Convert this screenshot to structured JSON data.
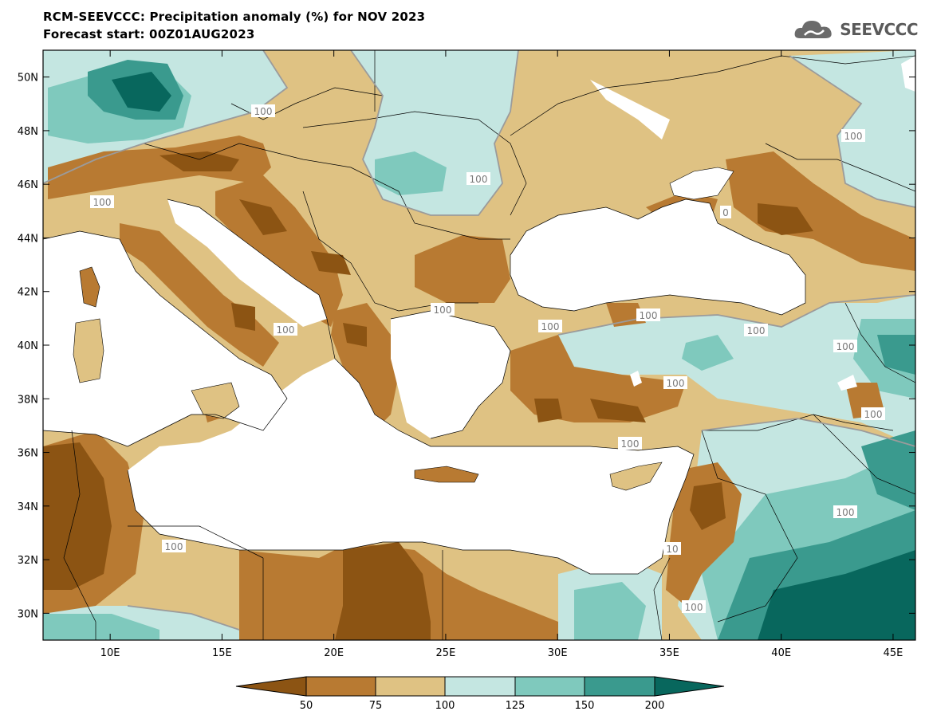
{
  "header": {
    "title_line1": "RCM-SEEVCCC: Precipitation anomaly (%) for NOV 2023",
    "title_line2": "Forecast start: 00Z01AUG2023",
    "logo_text": "SEEVCCC",
    "logo_icon": "cloud-icon"
  },
  "map": {
    "lon_range": [
      7,
      46
    ],
    "lat_range": [
      29,
      51
    ],
    "x_ticks": [
      "10E",
      "15E",
      "20E",
      "25E",
      "30E",
      "35E",
      "40E",
      "45E"
    ],
    "y_ticks": [
      "50N",
      "48N",
      "46N",
      "44N",
      "42N",
      "40N",
      "38N",
      "36N",
      "34N",
      "32N",
      "30N"
    ],
    "contour_labels": [
      "100",
      "100",
      "100",
      "100",
      "100",
      "100",
      "100",
      "100",
      "100",
      "100",
      "100",
      "100",
      "100",
      "100",
      "100",
      "100",
      "10",
      "0",
      "0"
    ]
  },
  "colorbar": {
    "labels": [
      "50",
      "75",
      "100",
      "125",
      "150",
      "200"
    ],
    "colors": [
      "#8c5413",
      "#b87a32",
      "#dfc283",
      "#c4e6e1",
      "#7fc9bd",
      "#3a9a8e",
      "#08675d"
    ]
  }
}
